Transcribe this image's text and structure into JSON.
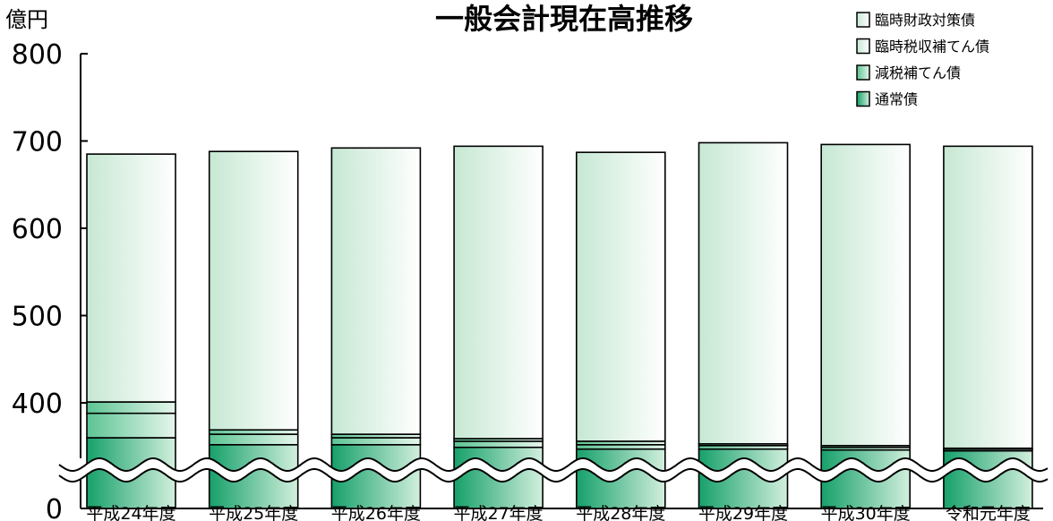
{
  "chart_data": {
    "type": "bar",
    "stacked": true,
    "title": "一般会計現在高推移",
    "unit_label": "億円",
    "ylim": [
      0,
      800
    ],
    "axis_break": true,
    "y_ticks": [
      {
        "value": 800,
        "label": "800"
      },
      {
        "value": 700,
        "label": "700"
      },
      {
        "value": 600,
        "label": "600"
      },
      {
        "value": 500,
        "label": "500"
      },
      {
        "value": 400,
        "label": "400"
      },
      {
        "value": 0,
        "label": "0"
      }
    ],
    "categories": [
      "平成24年度",
      "平成25年度",
      "平成26年度",
      "平成27年度",
      "平成28年度",
      "平成29年度",
      "平成30年度",
      "令和元年度"
    ],
    "series": [
      {
        "name": "通常債",
        "values": [
          360,
          352,
          352,
          349,
          347,
          347,
          346,
          345
        ]
      },
      {
        "name": "減税補てん債",
        "values": [
          28,
          12,
          8,
          7,
          5,
          4,
          3,
          2
        ]
      },
      {
        "name": "臨時税収補てん債",
        "values": [
          13,
          5,
          4,
          3,
          4,
          2,
          2,
          1
        ]
      },
      {
        "name": "臨時財政対策債",
        "values": [
          284,
          319,
          328,
          335,
          331,
          345,
          345,
          346
        ]
      }
    ],
    "legend_position": "top-right",
    "grid": false,
    "colors": {
      "dark": "#22b07a",
      "light": "#dff2e7",
      "stroke": "#000000"
    }
  }
}
